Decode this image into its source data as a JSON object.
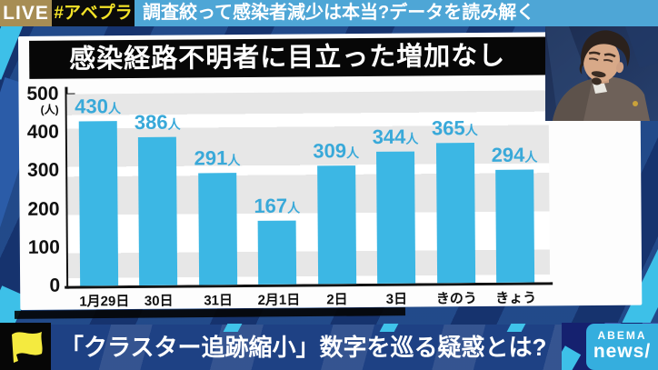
{
  "header": {
    "live": "LIVE",
    "hashtag": "#アベプラ",
    "headline": "調査絞って感染者減少は本当?データを読み解く"
  },
  "chart_panel": {
    "title": "感染経路不明者に目立った増加なし"
  },
  "chart_data": {
    "type": "bar",
    "title": "感染経路不明者に目立った増加なし",
    "categories": [
      "1月29日",
      "30日",
      "31日",
      "2月1日",
      "2日",
      "3日",
      "きのう",
      "きょう"
    ],
    "values": [
      430,
      386,
      291,
      167,
      309,
      344,
      365,
      294
    ],
    "value_unit": "人",
    "xlabel": "",
    "ylabel": "(人)",
    "ylim": [
      0,
      500
    ],
    "yticks": [
      500,
      400,
      300,
      200,
      100,
      0
    ],
    "grid": "horizontal gray bands",
    "legend": "none",
    "bar_color": "#3cb7e4",
    "value_label_color": "#39a9d9"
  },
  "bottom_bar": {
    "headline": "「クラスター追跡縮小」数字を巡る疑惑とは?",
    "logo_line1": "ABEMA",
    "logo_line2": "news/"
  },
  "colors": {
    "accent_cyan": "#3cb7e4",
    "header_blue": "#4ea6d6",
    "live_tan": "#a78d54",
    "hashtag_yellow": "#f4e327",
    "background_navy": "#16336e",
    "banner_navy": "#1e4184",
    "logo_cyan": "#35aede"
  }
}
